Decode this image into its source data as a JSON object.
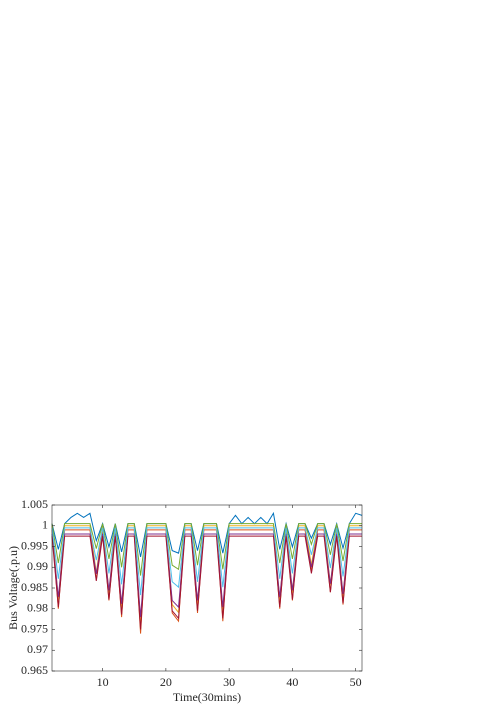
{
  "chart_data": {
    "type": "line",
    "xlabel": "Time(30mins)",
    "ylabel": "Bus Voltage(.p.u)",
    "x": [
      2,
      3,
      4,
      5,
      6,
      7,
      8,
      9,
      10,
      11,
      12,
      13,
      14,
      15,
      16,
      17,
      18,
      19,
      20,
      21,
      22,
      23,
      24,
      25,
      26,
      27,
      28,
      29,
      30,
      31,
      32,
      33,
      34,
      35,
      36,
      37,
      38,
      39,
      40,
      41,
      42,
      43,
      44,
      45,
      46,
      47,
      48,
      49,
      50,
      51
    ],
    "xlim": [
      2,
      51
    ],
    "xticks": [
      10,
      20,
      30,
      40,
      50
    ],
    "ylim": [
      0.965,
      1.005
    ],
    "yticks": [
      0.965,
      0.97,
      0.975,
      0.98,
      0.985,
      0.99,
      0.995,
      1,
      1.005
    ],
    "grid": false,
    "series": [
      {
        "color": "#0072bd",
        "values": [
          1.0005,
          0.9943,
          1.0005,
          1.002,
          1.003,
          1.002,
          1.003,
          0.9964,
          1.0005,
          0.9949,
          1.0005,
          0.9937,
          1.0005,
          1.0005,
          0.9925,
          1.0005,
          1.0005,
          1.0005,
          1.0005,
          0.994,
          0.9934,
          1.0005,
          1.0005,
          0.994,
          1.0005,
          1.0005,
          1.0005,
          0.9934,
          1.0005,
          1.0025,
          1.0005,
          1.002,
          1.0005,
          1.002,
          1.0005,
          1.003,
          0.9943,
          1.0005,
          0.9949,
          1.0005,
          1.0005,
          0.997,
          1.0005,
          1.0005,
          0.9955,
          1.0005,
          0.9946,
          1.0005,
          1.003,
          1.0025
        ]
      },
      {
        "color": "#d95319",
        "values": [
          0.999,
          0.98,
          0.999,
          0.999,
          0.999,
          0.999,
          0.999,
          0.987,
          0.999,
          0.982,
          0.999,
          0.978,
          0.999,
          0.999,
          0.974,
          0.999,
          0.999,
          0.999,
          0.999,
          0.979,
          0.977,
          0.999,
          0.999,
          0.979,
          0.999,
          0.999,
          0.999,
          0.977,
          0.999,
          0.999,
          0.999,
          0.999,
          0.999,
          0.999,
          0.999,
          0.999,
          0.98,
          0.999,
          0.982,
          0.999,
          0.999,
          0.989,
          0.999,
          0.999,
          0.984,
          0.999,
          0.981,
          0.999,
          0.999,
          0.999
        ]
      },
      {
        "color": "#edb120",
        "values": [
          1,
          0.982,
          1,
          1,
          1,
          1,
          1,
          0.9886,
          1,
          0.9839,
          1,
          0.98,
          1,
          1,
          0.9763,
          1,
          1,
          1,
          1,
          0.981,
          0.9791,
          1,
          1,
          0.981,
          1,
          1,
          1,
          0.9791,
          1,
          1,
          1,
          1,
          1,
          1,
          1,
          1,
          0.982,
          1,
          0.9839,
          1,
          1,
          0.9905,
          1,
          1,
          0.9858,
          1,
          0.9829,
          1,
          1,
          1
        ]
      },
      {
        "color": "#7e2f8e",
        "values": [
          0.998,
          0.9828,
          0.998,
          0.998,
          0.998,
          0.998,
          0.998,
          0.9884,
          0.998,
          0.9844,
          0.998,
          0.9812,
          0.998,
          0.998,
          0.978,
          0.998,
          0.998,
          0.998,
          0.998,
          0.982,
          0.9804,
          0.998,
          0.998,
          0.982,
          0.998,
          0.998,
          0.998,
          0.9804,
          0.998,
          0.998,
          0.998,
          0.998,
          0.998,
          0.998,
          0.998,
          0.998,
          0.9828,
          0.998,
          0.9844,
          0.998,
          0.998,
          0.99,
          0.998,
          0.998,
          0.986,
          0.998,
          0.9836,
          0.998,
          0.998,
          0.998
        ]
      },
      {
        "color": "#77ac30",
        "values": [
          1.0005,
          0.991,
          1.0005,
          1.0005,
          1.0005,
          1.0005,
          1.0005,
          0.9945,
          1.0005,
          0.992,
          1.0005,
          0.99,
          1.0005,
          1.0005,
          0.988,
          1.0005,
          1.0005,
          1.0005,
          1.0005,
          0.9905,
          0.9895,
          1.0005,
          1.0005,
          0.9905,
          1.0005,
          1.0005,
          1.0005,
          0.9895,
          1.0005,
          1.0005,
          1.0005,
          1.0005,
          1.0005,
          1.0005,
          1.0005,
          1.0005,
          0.991,
          1.0005,
          0.992,
          1.0005,
          1.0005,
          0.9955,
          1.0005,
          1.0005,
          0.993,
          1.0005,
          0.9915,
          1.0005,
          1.0005,
          1.0005
        ]
      },
      {
        "color": "#4dbeee",
        "values": [
          0.9995,
          0.9872,
          0.9995,
          0.9995,
          0.9995,
          0.9995,
          0.9995,
          0.9917,
          0.9995,
          0.9885,
          0.9995,
          0.9859,
          0.9995,
          0.9995,
          0.9833,
          0.9995,
          0.9995,
          0.9995,
          0.9995,
          0.9865,
          0.9852,
          0.9995,
          0.9995,
          0.9865,
          0.9995,
          0.9995,
          0.9995,
          0.9852,
          0.9995,
          0.9995,
          0.9995,
          0.9995,
          0.9995,
          0.9995,
          0.9995,
          0.9995,
          0.9872,
          0.9995,
          0.9885,
          0.9995,
          0.9995,
          0.993,
          0.9995,
          0.9995,
          0.9898,
          0.9995,
          0.9878,
          0.9995,
          0.9995,
          0.9995
        ]
      },
      {
        "color": "#a2142f",
        "values": [
          0.9975,
          0.9804,
          0.9975,
          0.9975,
          0.9975,
          0.9975,
          0.9975,
          0.9867,
          0.9975,
          0.9822,
          0.9975,
          0.9786,
          0.9975,
          0.9975,
          0.975,
          0.9975,
          0.9975,
          0.9975,
          0.9975,
          0.9795,
          0.9777,
          0.9975,
          0.9975,
          0.9795,
          0.9975,
          0.9975,
          0.9975,
          0.9777,
          0.9975,
          0.9975,
          0.9975,
          0.9975,
          0.9975,
          0.9975,
          0.9975,
          0.9975,
          0.9804,
          0.9975,
          0.9822,
          0.9975,
          0.9975,
          0.9885,
          0.9975,
          0.9975,
          0.984,
          0.9975,
          0.9813,
          0.9975,
          0.9975,
          0.9975
        ]
      }
    ]
  }
}
